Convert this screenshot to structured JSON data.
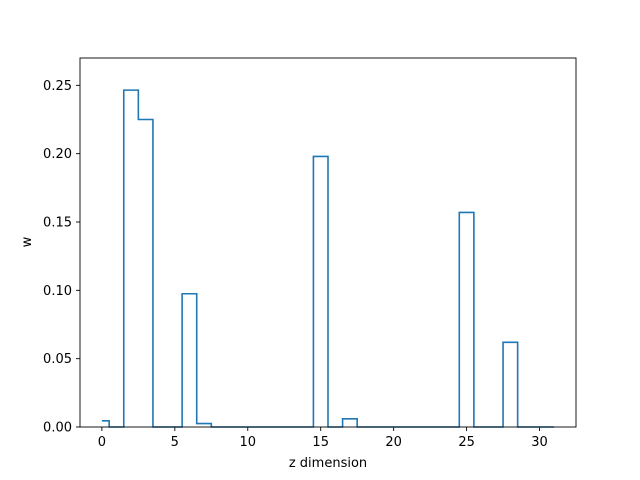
{
  "chart_data": {
    "type": "line",
    "drawstyle": "steps-mid",
    "title": "",
    "xlabel": "z dimension",
    "ylabel": "w",
    "xlim": [
      -1.5,
      32.5
    ],
    "ylim": [
      0,
      0.27
    ],
    "xticks": [
      0,
      5,
      10,
      15,
      20,
      25,
      30
    ],
    "yticks": [
      "0.00",
      "0.05",
      "0.10",
      "0.15",
      "0.20",
      "0.25"
    ],
    "grid": false,
    "color": "#1f77b4",
    "x": [
      0,
      1,
      2,
      3,
      4,
      5,
      6,
      7,
      8,
      9,
      10,
      11,
      12,
      13,
      14,
      15,
      16,
      17,
      18,
      19,
      20,
      21,
      22,
      23,
      24,
      25,
      26,
      27,
      28,
      29,
      30,
      31
    ],
    "y": [
      0.0045,
      0,
      0.2465,
      0.225,
      0,
      0,
      0.0975,
      0.0025,
      0,
      0,
      0,
      0,
      0,
      0,
      0,
      0.198,
      0,
      0.006,
      0,
      0,
      0,
      0,
      0,
      0,
      0,
      0.157,
      0,
      0,
      0.062,
      0,
      0,
      0
    ]
  }
}
